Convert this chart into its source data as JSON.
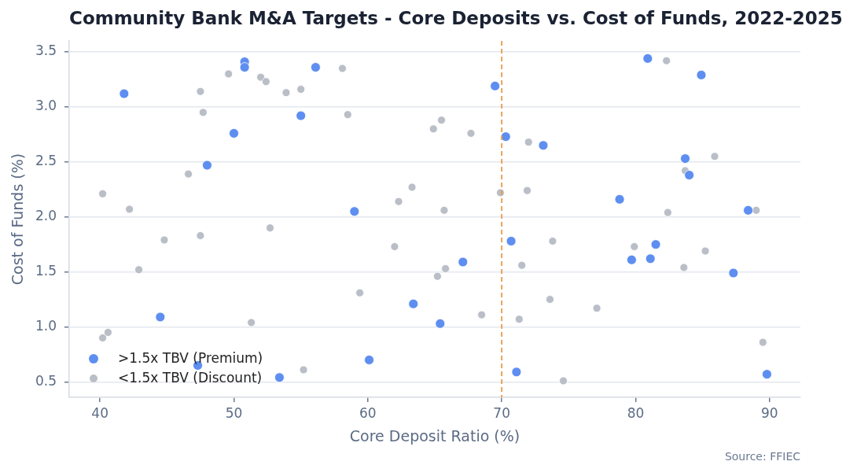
{
  "chart_data": {
    "type": "scatter",
    "title": "Community Bank M&A Targets - Core Deposits vs. Cost of Funds, 2022-2025",
    "xlabel": "Core Deposit Ratio (%)",
    "ylabel": "Cost of Funds (%)",
    "annotations": [
      "Source: FFIEC"
    ],
    "series": [
      {
        "name": ">1.5x TBV (Premium)",
        "color": "#5e8ef0",
        "x": [
          41.8,
          50.8,
          50.8,
          56.1,
          55.0,
          50.0,
          48.0,
          69.5,
          70.3,
          73.1,
          59.0,
          80.9,
          84.9,
          83.7,
          84.0,
          78.8,
          88.4,
          44.5,
          47.3,
          53.4,
          70.7,
          67.1,
          63.4,
          65.4,
          60.1,
          71.1,
          81.5,
          79.7,
          81.1,
          87.3,
          89.8
        ],
        "values": [
          3.12,
          3.41,
          3.36,
          3.36,
          2.92,
          2.76,
          2.47,
          3.19,
          2.73,
          2.65,
          2.05,
          3.44,
          3.29,
          2.53,
          2.38,
          2.16,
          2.06,
          1.09,
          0.65,
          0.54,
          1.78,
          1.59,
          1.21,
          1.03,
          0.7,
          0.59,
          1.75,
          1.61,
          1.62,
          1.49,
          0.57
        ]
      },
      {
        "name": "<1.5x TBV (Discount)",
        "color": "#b9bec7",
        "x": [
          49.6,
          52.0,
          52.4,
          47.5,
          53.9,
          55.0,
          47.7,
          46.6,
          40.2,
          42.2,
          52.7,
          58.1,
          58.5,
          65.5,
          64.9,
          67.7,
          72.0,
          63.3,
          62.3,
          65.7,
          69.9,
          71.9,
          82.3,
          85.9,
          83.7,
          82.4,
          89.0,
          44.8,
          47.5,
          42.9,
          40.2,
          40.6,
          51.3,
          55.2,
          62.0,
          65.8,
          65.2,
          59.4,
          68.5,
          71.5,
          71.3,
          73.8,
          73.6,
          79.9,
          85.2,
          83.6,
          77.1,
          89.5,
          74.6
        ],
        "values": [
          3.3,
          3.27,
          3.23,
          3.14,
          3.13,
          3.16,
          2.95,
          2.39,
          2.21,
          2.07,
          1.9,
          3.35,
          2.93,
          2.88,
          2.8,
          2.76,
          2.68,
          2.27,
          2.14,
          2.06,
          2.22,
          2.24,
          3.42,
          2.55,
          2.42,
          2.04,
          2.06,
          1.79,
          1.83,
          1.52,
          0.9,
          0.95,
          1.04,
          0.61,
          1.73,
          1.53,
          1.46,
          1.31,
          1.11,
          1.56,
          1.07,
          1.78,
          1.25,
          1.73,
          1.69,
          1.54,
          1.17,
          0.86,
          0.51
        ]
      }
    ],
    "xlim": [
      37.7,
      92.3
    ],
    "ylim": [
      0.36,
      3.6
    ],
    "xticks": [
      40,
      50,
      60,
      70,
      80,
      90
    ],
    "yticks": [
      0.5,
      {
        "value": 1,
        "label": "1.0"
      },
      1.5,
      {
        "value": 2,
        "label": "2.0"
      },
      2.5,
      {
        "value": 3,
        "label": "3.0"
      },
      3.5
    ],
    "ref_lines": [
      {
        "axis": "x",
        "value": 70,
        "color": "#e99a45",
        "line_style": "dashed"
      }
    ],
    "grid": "y",
    "legend": "bottom left",
    "marker": "circle"
  }
}
